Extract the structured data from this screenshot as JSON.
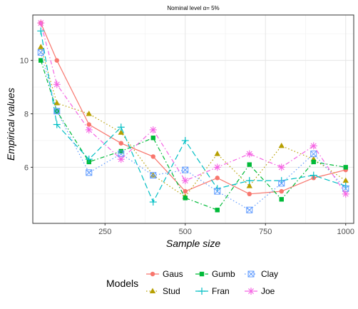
{
  "chart_data": {
    "type": "line",
    "title": "Nominal level α= 5%",
    "xlabel": "Sample size",
    "ylabel": "Empirical values",
    "xlim": [
      25,
      1025
    ],
    "ylim": [
      3.9,
      11.7
    ],
    "x_ticks": [
      250,
      500,
      750,
      1000
    ],
    "y_ticks": [
      6,
      8,
      10
    ],
    "grid": true,
    "legend_title": "Models",
    "legend_position": "bottom",
    "x": [
      50,
      100,
      200,
      300,
      400,
      500,
      600,
      700,
      800,
      900,
      1000
    ],
    "series": [
      {
        "name": "Gaus",
        "color": "#F8766D",
        "marker": "circle",
        "dash": "solid",
        "values": [
          11.4,
          10.0,
          7.6,
          6.9,
          6.4,
          5.1,
          5.6,
          5.0,
          5.1,
          5.6,
          5.9
        ]
      },
      {
        "name": "Stud",
        "color": "#B79F00",
        "marker": "triangle",
        "dash": "dotted",
        "values": [
          10.5,
          8.4,
          8.0,
          7.3,
          5.7,
          4.9,
          6.5,
          5.3,
          6.8,
          6.3,
          5.5
        ]
      },
      {
        "name": "Gumb",
        "color": "#00BA38",
        "marker": "square",
        "dash": "dashdot",
        "values": [
          10.0,
          8.1,
          6.2,
          6.6,
          7.1,
          4.85,
          4.4,
          6.1,
          4.8,
          6.2,
          6.0
        ]
      },
      {
        "name": "Fran",
        "color": "#00BFC4",
        "marker": "plus",
        "dash": "longdash",
        "values": [
          11.1,
          7.6,
          6.3,
          7.5,
          4.7,
          7.0,
          5.2,
          5.5,
          5.5,
          5.7,
          5.3
        ]
      },
      {
        "name": "Clay",
        "color": "#619CFF",
        "marker": "boxx",
        "dash": "dotted",
        "values": [
          10.3,
          8.1,
          5.8,
          6.5,
          5.7,
          5.9,
          5.1,
          4.4,
          5.4,
          6.5,
          5.2
        ]
      },
      {
        "name": "Joe",
        "color": "#F564E3",
        "marker": "asterisk",
        "dash": "dashdot",
        "values": [
          11.4,
          9.1,
          7.4,
          6.3,
          7.4,
          5.5,
          6.0,
          6.5,
          6.0,
          6.8,
          5.0
        ]
      }
    ]
  }
}
